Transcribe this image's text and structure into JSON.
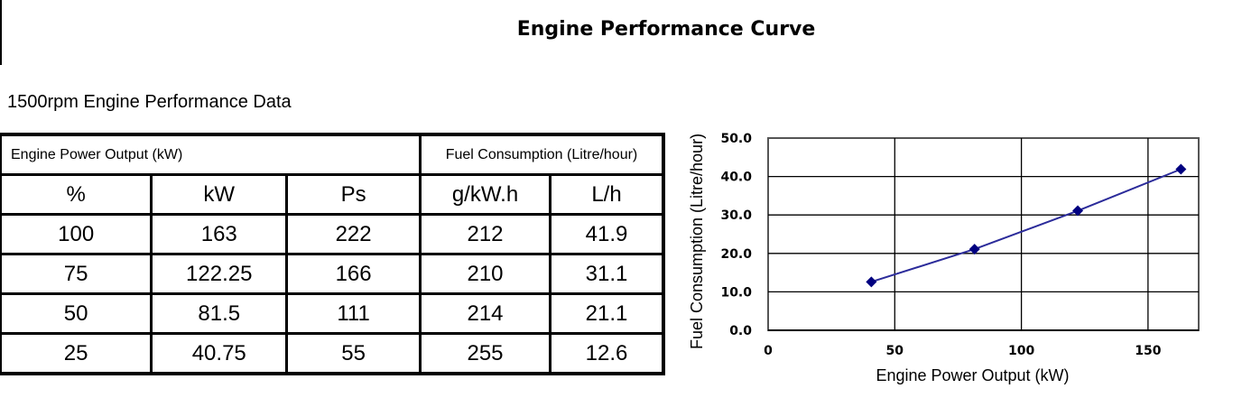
{
  "title": "Engine Performance Curve",
  "subtitle": "1500rpm Engine Performance Data",
  "table": {
    "group_headers": [
      "Engine Power Output (kW)",
      "Fuel Consumption (Litre/hour)"
    ],
    "columns": [
      "%",
      "kW",
      "Ps",
      "g/kW.h",
      "L/h"
    ],
    "rows": [
      [
        "100",
        "163",
        "222",
        "212",
        "41.9"
      ],
      [
        "75",
        "122.25",
        "166",
        "210",
        "31.1"
      ],
      [
        "50",
        "81.5",
        "111",
        "214",
        "21.1"
      ],
      [
        "25",
        "40.75",
        "55",
        "255",
        "12.6"
      ]
    ]
  },
  "chart_data": {
    "type": "line",
    "xlabel": "Engine Power Output (kW)",
    "ylabel": "Fuel Consumption (Litre/hour)",
    "xlim": [
      0,
      170
    ],
    "ylim": [
      0,
      50
    ],
    "xticks": [
      "0",
      "50",
      "100",
      "150"
    ],
    "yticks": [
      "0.0",
      "10.0",
      "20.0",
      "30.0",
      "40.0",
      "50.0"
    ],
    "grid": true,
    "marker": "diamond",
    "line_color": "#2b2b9a",
    "marker_color": "#000080",
    "x": [
      40.75,
      81.5,
      122.25,
      163
    ],
    "y": [
      12.6,
      21.1,
      31.1,
      41.9
    ]
  }
}
